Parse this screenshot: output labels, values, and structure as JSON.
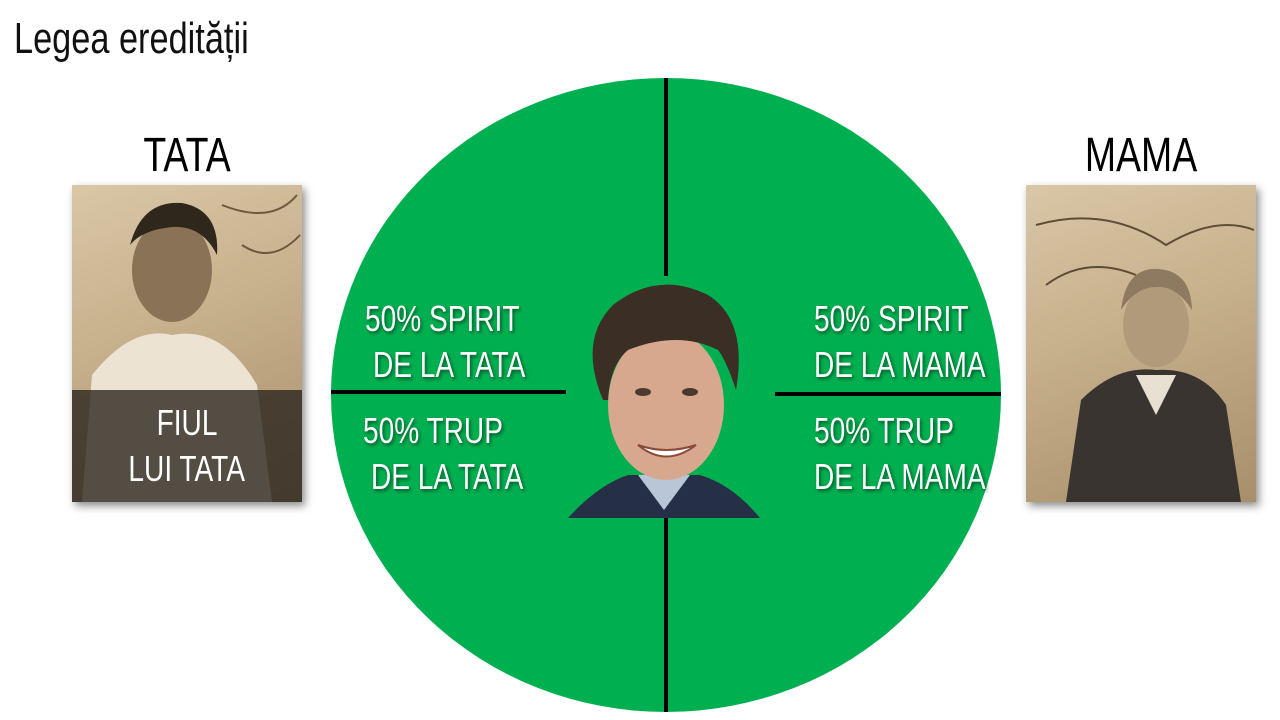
{
  "slide": {
    "title": "Legea eredității",
    "accent_color": "#00b050"
  },
  "father": {
    "label": "TATA",
    "caption_line1": "FIUL",
    "caption_line2": "LUI TATA"
  },
  "mother": {
    "label": "MAMA"
  },
  "quadrants": {
    "top_left": {
      "line1": "50% SPIRIT",
      "line2": "DE LA TATA"
    },
    "bottom_left": {
      "line1": "50% TRUP",
      "line2": "DE LA TATA"
    },
    "top_right": {
      "line1": "50% SPIRIT",
      "line2": "DE LA MAMA"
    },
    "bottom_right": {
      "line1": "50% TRUP",
      "line2": "DE LA MAMA"
    }
  }
}
